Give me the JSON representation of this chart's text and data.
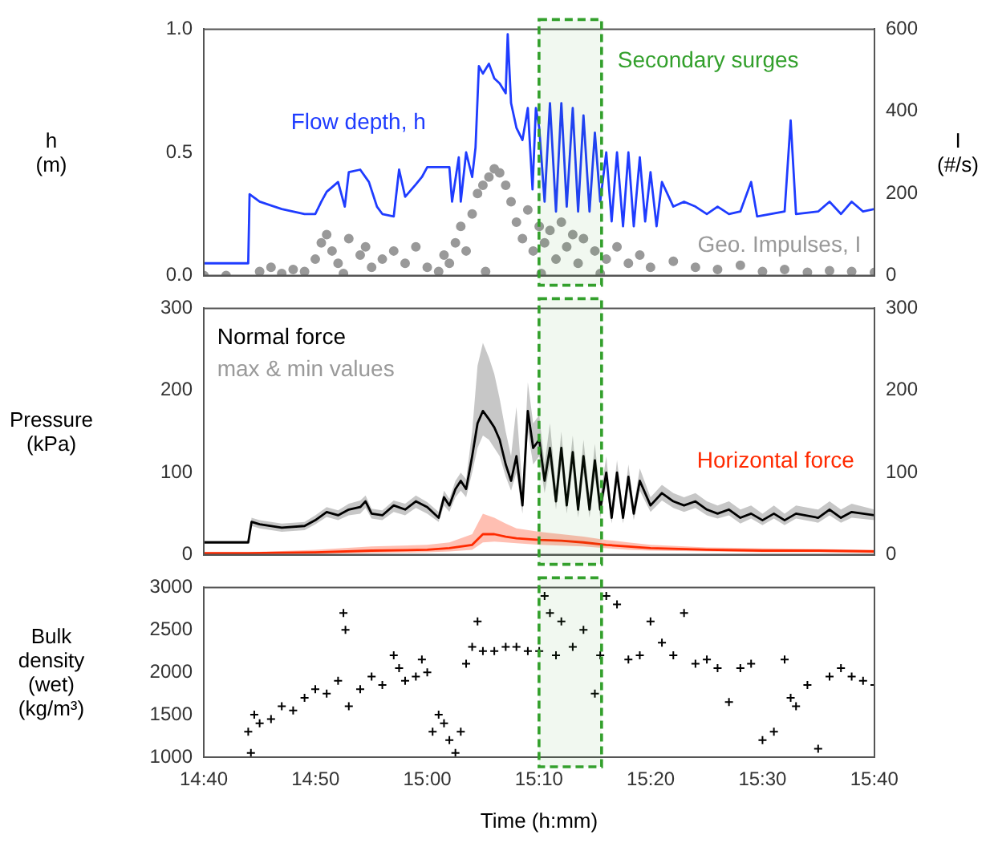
{
  "chart_data": [
    {
      "type": "line",
      "ylabel": "h (m)",
      "y2label": "I (#/s)",
      "ylim": [
        0,
        1
      ],
      "yticks": [
        {
          "value": 0,
          "label": "0.0"
        },
        {
          "value": 0.5,
          "label": "0.5"
        },
        {
          "value": 1,
          "label": "1.0"
        }
      ],
      "y2lim": [
        0,
        600
      ],
      "y2ticks": [
        0,
        200,
        400,
        600
      ],
      "xlim": [
        14.6667,
        15.667
      ],
      "xticks": [
        {
          "value": 14.6667,
          "label": null
        },
        {
          "value": 14.8333,
          "label": null
        },
        {
          "value": 15,
          "label": null
        },
        {
          "value": 15.1667,
          "label": null
        },
        {
          "value": 15.3333,
          "label": null
        },
        {
          "value": 15.5,
          "label": null
        },
        {
          "value": 15.6667,
          "label": null
        }
      ],
      "tick_labels": "y",
      "bands": [
        {
          "axis": "x",
          "from": 15.1667,
          "to": 15.26,
          "label": "Secondary surges",
          "color": "#33a02c"
        }
      ],
      "series": [
        {
          "name": "Flow depth, h",
          "marker": "none",
          "color": "#1f3cff",
          "x": [
            14.667,
            14.733,
            14.735,
            14.75,
            14.783,
            14.817,
            14.833,
            14.842,
            14.85,
            14.867,
            14.877,
            14.883,
            14.9,
            14.913,
            14.925,
            14.933,
            14.95,
            14.958,
            14.967,
            14.983,
            14.992,
            15.0,
            15.017,
            15.033,
            15.037,
            15.047,
            15.05,
            15.058,
            15.067,
            15.072,
            15.077,
            15.083,
            15.092,
            15.1,
            15.108,
            15.117,
            15.12,
            15.125,
            15.133,
            15.142,
            15.15,
            15.157,
            15.162,
            15.167,
            15.175,
            15.183,
            15.192,
            15.2,
            15.208,
            15.217,
            15.225,
            15.233,
            15.242,
            15.25,
            15.258,
            15.267,
            15.275,
            15.283,
            15.292,
            15.3,
            15.308,
            15.317,
            15.325,
            15.333,
            15.342,
            15.35,
            15.367,
            15.383,
            15.4,
            15.417,
            15.433,
            15.45,
            15.467,
            15.483,
            15.492,
            15.533,
            15.542,
            15.55,
            15.583,
            15.6,
            15.617,
            15.633,
            15.65,
            15.667
          ],
          "values": [
            0.05,
            0.05,
            0.33,
            0.3,
            0.27,
            0.25,
            0.25,
            0.3,
            0.34,
            0.38,
            0.28,
            0.42,
            0.43,
            0.38,
            0.28,
            0.25,
            0.24,
            0.43,
            0.32,
            0.37,
            0.4,
            0.44,
            0.44,
            0.44,
            0.3,
            0.48,
            0.3,
            0.5,
            0.4,
            0.52,
            0.85,
            0.82,
            0.86,
            0.8,
            0.78,
            0.74,
            0.98,
            0.7,
            0.6,
            0.55,
            0.68,
            0.35,
            0.68,
            0.6,
            0.3,
            0.7,
            0.26,
            0.7,
            0.28,
            0.68,
            0.26,
            0.65,
            0.26,
            0.58,
            0.3,
            0.5,
            0.22,
            0.5,
            0.2,
            0.5,
            0.2,
            0.48,
            0.22,
            0.42,
            0.2,
            0.38,
            0.28,
            0.3,
            0.28,
            0.25,
            0.28,
            0.25,
            0.26,
            0.38,
            0.24,
            0.26,
            0.63,
            0.25,
            0.26,
            0.3,
            0.25,
            0.3,
            0.26,
            0.27
          ]
        },
        {
          "name": "Geo. Impulses, I",
          "type": "scatter",
          "axis": "y2",
          "marker": "circle",
          "color": "#999999",
          "x": [
            14.667,
            14.7,
            14.75,
            14.767,
            14.783,
            14.8,
            14.817,
            14.833,
            14.842,
            14.85,
            14.858,
            14.867,
            14.875,
            14.883,
            14.9,
            14.908,
            14.917,
            14.933,
            14.95,
            14.967,
            14.983,
            15.0,
            15.017,
            15.025,
            15.033,
            15.042,
            15.05,
            15.058,
            15.067,
            15.075,
            15.083,
            15.087,
            15.092,
            15.1,
            15.108,
            15.117,
            15.125,
            15.133,
            15.142,
            15.15,
            15.158,
            15.167,
            15.17,
            15.175,
            15.183,
            15.192,
            15.2,
            15.208,
            15.217,
            15.225,
            15.233,
            15.25,
            15.258,
            15.267,
            15.283,
            15.3,
            15.317,
            15.333,
            15.367,
            15.4,
            15.433,
            15.467,
            15.5,
            15.533,
            15.567,
            15.6,
            15.633,
            15.667
          ],
          "values": [
            0,
            0,
            10,
            20,
            5,
            15,
            10,
            40,
            80,
            100,
            60,
            30,
            5,
            90,
            50,
            70,
            20,
            40,
            60,
            30,
            70,
            20,
            10,
            50,
            30,
            80,
            120,
            60,
            150,
            200,
            220,
            10,
            240,
            260,
            250,
            220,
            180,
            130,
            90,
            160,
            60,
            120,
            5,
            80,
            110,
            40,
            130,
            70,
            100,
            30,
            90,
            60,
            5,
            40,
            70,
            30,
            50,
            20,
            35,
            20,
            15,
            25,
            10,
            15,
            8,
            12,
            10,
            8
          ]
        }
      ]
    },
    {
      "type": "line",
      "ylabel": "Pressure (kPa)",
      "ylim": [
        0,
        300
      ],
      "yticks": [
        0,
        100,
        200,
        300
      ],
      "y2lim": [
        0,
        300
      ],
      "y2ticks": [
        0,
        100,
        200,
        300
      ],
      "xlim": [
        14.6667,
        15.667
      ],
      "xticks": [
        {
          "value": 14.6667,
          "label": null
        },
        {
          "value": 14.8333,
          "label": null
        },
        {
          "value": 15,
          "label": null
        },
        {
          "value": 15.1667,
          "label": null
        },
        {
          "value": 15.3333,
          "label": null
        },
        {
          "value": 15.5,
          "label": null
        },
        {
          "value": 15.6667,
          "label": null
        }
      ],
      "tick_labels": "y",
      "annotations": [
        "max & min values"
      ],
      "bands": [
        {
          "axis": "x",
          "from": 15.1667,
          "to": 15.26,
          "color": "#33a02c"
        }
      ],
      "series": [
        {
          "name": "Normal force",
          "marker": "none",
          "color": "#000000",
          "x": [
            14.667,
            14.733,
            14.738,
            14.75,
            14.783,
            14.817,
            14.833,
            14.85,
            14.867,
            14.883,
            14.9,
            14.908,
            14.917,
            14.933,
            14.95,
            14.967,
            14.983,
            15.0,
            15.017,
            15.025,
            15.033,
            15.042,
            15.05,
            15.058,
            15.067,
            15.075,
            15.083,
            15.092,
            15.1,
            15.108,
            15.117,
            15.125,
            15.133,
            15.142,
            15.15,
            15.158,
            15.167,
            15.175,
            15.183,
            15.192,
            15.2,
            15.208,
            15.217,
            15.225,
            15.233,
            15.242,
            15.25,
            15.258,
            15.267,
            15.275,
            15.283,
            15.292,
            15.3,
            15.308,
            15.317,
            15.333,
            15.35,
            15.367,
            15.383,
            15.4,
            15.417,
            15.433,
            15.45,
            15.467,
            15.483,
            15.5,
            15.517,
            15.533,
            15.55,
            15.583,
            15.6,
            15.617,
            15.633,
            15.667
          ],
          "values": [
            15,
            15,
            40,
            37,
            33,
            35,
            42,
            52,
            48,
            55,
            58,
            65,
            50,
            48,
            60,
            55,
            65,
            58,
            45,
            70,
            60,
            80,
            90,
            80,
            120,
            160,
            175,
            165,
            155,
            140,
            110,
            90,
            120,
            60,
            175,
            130,
            140,
            90,
            130,
            65,
            130,
            60,
            125,
            55,
            120,
            55,
            115,
            55,
            100,
            45,
            100,
            45,
            95,
            50,
            90,
            60,
            75,
            65,
            60,
            65,
            55,
            50,
            55,
            45,
            50,
            42,
            50,
            42,
            50,
            45,
            55,
            45,
            52,
            48
          ],
          "upper": [
            17,
            17,
            45,
            42,
            38,
            40,
            48,
            58,
            54,
            62,
            66,
            72,
            56,
            54,
            66,
            62,
            72,
            64,
            52,
            78,
            68,
            90,
            100,
            92,
            150,
            230,
            258,
            240,
            220,
            190,
            150,
            120,
            180,
            80,
            210,
            160,
            170,
            110,
            160,
            80,
            150,
            75,
            145,
            70,
            140,
            70,
            135,
            70,
            120,
            55,
            115,
            55,
            110,
            60,
            105,
            70,
            85,
            75,
            70,
            75,
            65,
            60,
            65,
            55,
            60,
            50,
            60,
            50,
            60,
            55,
            65,
            55,
            62,
            55
          ],
          "lower": [
            14,
            14,
            35,
            32,
            28,
            30,
            37,
            46,
            42,
            48,
            50,
            57,
            44,
            42,
            52,
            48,
            57,
            50,
            40,
            60,
            52,
            70,
            78,
            70,
            100,
            130,
            145,
            140,
            130,
            120,
            95,
            78,
            100,
            50,
            150,
            110,
            120,
            75,
            110,
            55,
            110,
            50,
            105,
            45,
            100,
            45,
            95,
            45,
            85,
            38,
            85,
            38,
            80,
            42,
            78,
            52,
            66,
            57,
            52,
            57,
            48,
            44,
            48,
            38,
            44,
            36,
            44,
            36,
            44,
            39,
            48,
            39,
            45,
            42
          ]
        },
        {
          "name": "Horizontal force",
          "marker": "none",
          "color": "#ff2a00",
          "x": [
            14.667,
            14.733,
            14.833,
            14.917,
            15.0,
            15.033,
            15.067,
            15.083,
            15.1,
            15.117,
            15.133,
            15.167,
            15.2,
            15.233,
            15.267,
            15.3,
            15.333,
            15.417,
            15.5,
            15.583,
            15.667
          ],
          "values": [
            2,
            2,
            3,
            5,
            6,
            8,
            12,
            25,
            25,
            22,
            20,
            18,
            17,
            15,
            12,
            10,
            8,
            6,
            5,
            5,
            4
          ],
          "upper": [
            3,
            3,
            6,
            10,
            12,
            15,
            25,
            50,
            45,
            38,
            32,
            28,
            25,
            22,
            18,
            15,
            12,
            9,
            8,
            7,
            6
          ],
          "lower": [
            1,
            1,
            1,
            2,
            3,
            4,
            6,
            15,
            16,
            15,
            14,
            12,
            11,
            10,
            8,
            6,
            5,
            4,
            3,
            3,
            2
          ]
        }
      ]
    },
    {
      "type": "scatter",
      "ylabel": "Bulk density (wet) (kg/m³)",
      "xlabel": "Time (h:mm)",
      "marker": "cross",
      "ylim": [
        1000,
        3000
      ],
      "yticks": [
        1000,
        1500,
        2000,
        2500,
        3000
      ],
      "xlim": [
        14.6667,
        15.667
      ],
      "xticks": [
        {
          "value": 14.6667,
          "label": "14:40"
        },
        {
          "value": 14.8333,
          "label": "14:50"
        },
        {
          "value": 15,
          "label": "15:00"
        },
        {
          "value": 15.1667,
          "label": "15:10"
        },
        {
          "value": 15.3333,
          "label": "15:20"
        },
        {
          "value": 15.5,
          "label": "15:30"
        },
        {
          "value": 15.6667,
          "label": "15:40"
        }
      ],
      "bands": [
        {
          "axis": "x",
          "from": 15.1667,
          "to": 15.26,
          "color": "#33a02c"
        }
      ],
      "series": [
        {
          "color": "#000000",
          "x": [
            14.733,
            14.737,
            14.742,
            14.75,
            14.767,
            14.783,
            14.8,
            14.817,
            14.833,
            14.85,
            14.867,
            14.875,
            14.878,
            14.883,
            14.9,
            14.917,
            14.933,
            14.95,
            14.958,
            14.967,
            14.983,
            14.992,
            15.0,
            15.008,
            15.017,
            15.025,
            15.033,
            15.042,
            15.05,
            15.058,
            15.067,
            15.075,
            15.083,
            15.1,
            15.117,
            15.133,
            15.15,
            15.167,
            15.175,
            15.183,
            15.192,
            15.2,
            15.217,
            15.233,
            15.25,
            15.258,
            15.267,
            15.283,
            15.3,
            15.317,
            15.333,
            15.35,
            15.367,
            15.383,
            15.4,
            15.417,
            15.433,
            15.45,
            15.467,
            15.483,
            15.5,
            15.517,
            15.533,
            15.542,
            15.55,
            15.567,
            15.583,
            15.6,
            15.617,
            15.633,
            15.65,
            15.667
          ],
          "values": [
            1300,
            1050,
            1500,
            1400,
            1450,
            1600,
            1550,
            1700,
            1800,
            1750,
            1900,
            2700,
            2500,
            1600,
            1800,
            1950,
            1850,
            2200,
            2050,
            1900,
            1950,
            2150,
            2000,
            1300,
            1500,
            1400,
            1200,
            1050,
            1300,
            2100,
            2300,
            2600,
            2250,
            2250,
            2300,
            2300,
            2250,
            2250,
            2900,
            2700,
            2200,
            2600,
            2300,
            2500,
            1750,
            2200,
            2900,
            2800,
            2150,
            2200,
            2600,
            2350,
            2200,
            2700,
            2100,
            2150,
            2050,
            1650,
            2050,
            2100,
            1200,
            1300,
            2150,
            1700,
            1600,
            1850,
            1100,
            1950,
            2050,
            1950,
            1900,
            1850
          ]
        }
      ]
    }
  ]
}
